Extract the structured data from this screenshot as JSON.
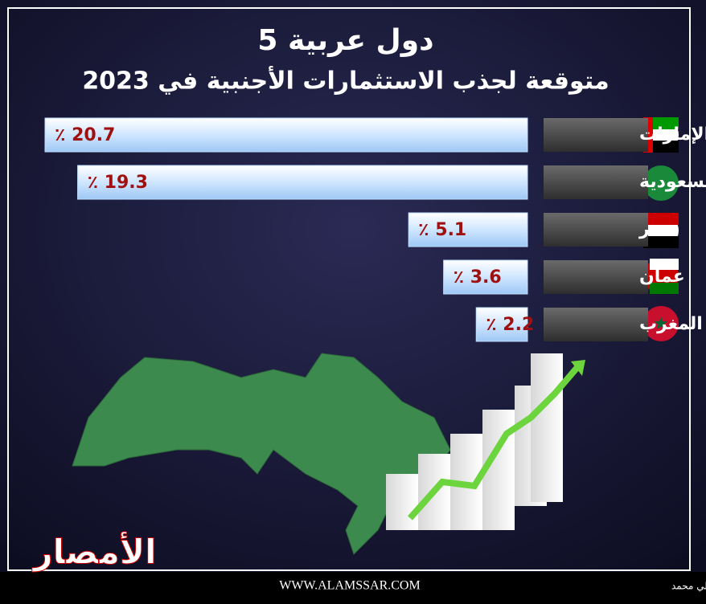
{
  "chart_data": {
    "type": "bar",
    "orientation": "horizontal",
    "title": "5 دول عربية",
    "subtitle": "متوقعة لجذب الاستثمارات الأجنبية في 2023",
    "categories": [
      "الإمارات",
      "السعودية",
      "مصر",
      "عمان",
      "المغرب"
    ],
    "values": [
      20.7,
      19.3,
      5.1,
      3.6,
      2.2
    ],
    "value_labels": [
      "٪ 20.7",
      "٪ 19.3",
      "٪ 5.1",
      "٪ 3.6",
      "٪ 2.2"
    ],
    "color": "#bfe0ff"
  },
  "footer": {
    "logo": "الأمصار",
    "website": "WWW.ALAMSSAR.COM",
    "credits": "إعداد: إسلام حسوب - تصميم: علي محمد"
  }
}
